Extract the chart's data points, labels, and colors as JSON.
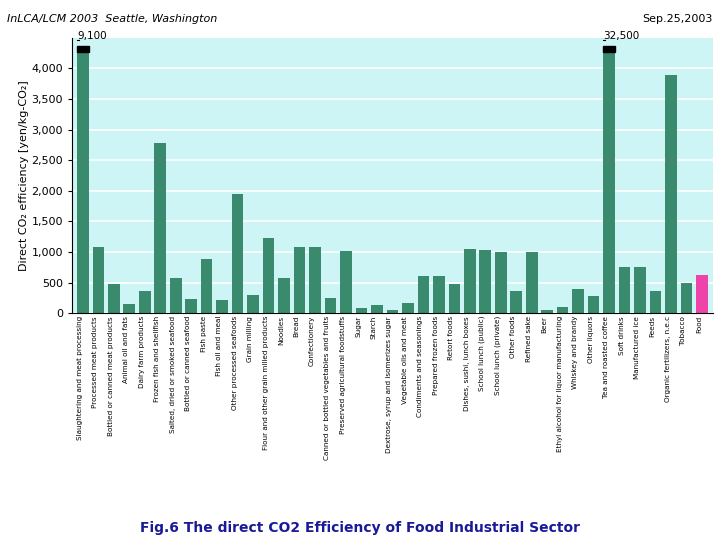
{
  "title_left": "InLCA/LCM 2003  Seattle, Washington",
  "title_right": "Sep.25,2003",
  "ylabel": "Direct CO₂ efficiency [yen/kg-CO₂]",
  "caption": "Fig.6 The direct CO2 Efficiency of Food Industrial Sector",
  "ylim": [
    0,
    4500
  ],
  "yticks": [
    0,
    500,
    1000,
    1500,
    2000,
    2500,
    3000,
    3500,
    4000
  ],
  "ytick_labels": [
    "0",
    "500",
    "1,000",
    "1,500",
    "2,000",
    "2,500",
    "3,000",
    "3,500",
    "4,000"
  ],
  "categories": [
    "Slaughtering and meat processing",
    "Processed meat products",
    "Bottled or canned meat products",
    "Animal oil and fats",
    "Dairy farm products",
    "Frozen fish and shellfish",
    "Salted, dried or smoked seafood",
    "Bottled or canned seafood",
    "Fish paste",
    "Fish oil and meal",
    "Other processed seafoods",
    "Grain milling",
    "Flour and other grain milled products",
    "Noodles",
    "Bread",
    "Confectionery",
    "Canned or bottled vegetables and fruits",
    "Preserved agricultural foodstuffs",
    "Sugar",
    "Starch",
    "Dextrose, syrup and isomerizes sugar",
    "Vegetable oils and meat",
    "Condiments and seasonings",
    "Prepared frozen foods",
    "Retort foods",
    "Dishes, sushi, lunch boxes",
    "School lunch (public)",
    "School lunch (private)",
    "Other foods",
    "Refined sake",
    "Beer",
    "Ethyl alcohol for liquor manufacturing",
    "Whiskey and brandy",
    "Other liquors",
    "Tea and roasted coffee",
    "Soft drinks",
    "Manufactured ice",
    "Feeds",
    "Organic fertilizers, n.e.c",
    "Tobacco",
    "Food"
  ],
  "values": [
    9100,
    1080,
    480,
    150,
    370,
    2780,
    570,
    240,
    880,
    220,
    1950,
    300,
    1230,
    570,
    1080,
    1080,
    250,
    1010,
    80,
    130,
    50,
    160,
    600,
    610,
    470,
    1050,
    1040,
    1000,
    360,
    1000,
    50,
    100,
    400,
    280,
    32500,
    750,
    750,
    370,
    3900,
    490,
    620
  ],
  "bar_color": "#3a8a6e",
  "special_color": "#ee44aa",
  "special_indices": [
    40
  ],
  "clipped_indices": [
    0,
    34
  ],
  "clip_value": 4320,
  "clip_labels": [
    "9,100",
    "32,500"
  ],
  "bg_color": "#cef5f5",
  "grid_color": "#ffffff",
  "fig_bg_color": "#ffffff"
}
